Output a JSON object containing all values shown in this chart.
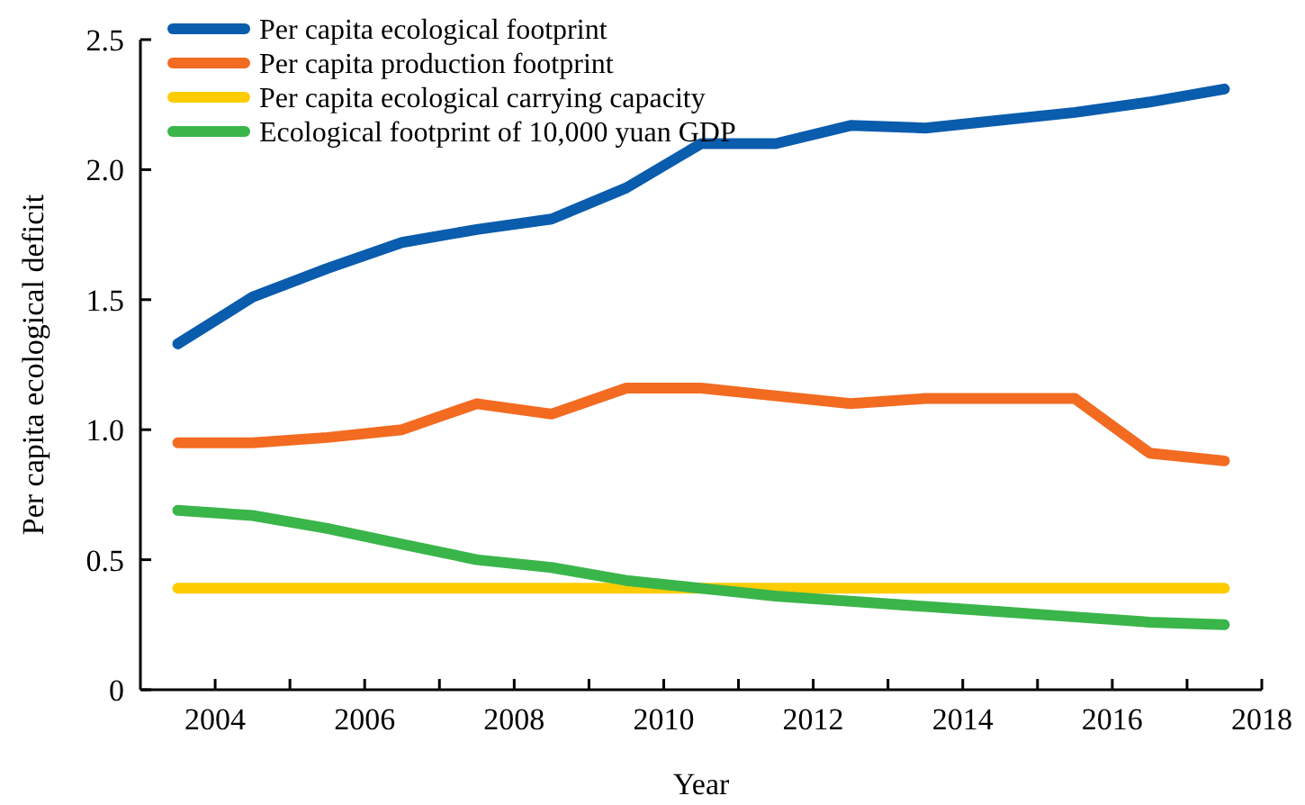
{
  "chart_data": {
    "type": "line",
    "xlabel": "Year",
    "ylabel": "Per capita ecological deficit",
    "x": [
      2003.5,
      2004.5,
      2005.5,
      2006.5,
      2007.5,
      2008.5,
      2009.5,
      2010.5,
      2011.5,
      2012.5,
      2013.5,
      2014.5,
      2015.5,
      2016.5,
      2017.5
    ],
    "xlim": [
      2003,
      2018
    ],
    "xticks": [
      2004,
      {
        "value": 2005,
        "label": null
      },
      2006,
      {
        "value": 2007,
        "label": null
      },
      2008,
      {
        "value": 2009,
        "label": null
      },
      2010,
      {
        "value": 2011,
        "label": null
      },
      2012,
      {
        "value": 2013,
        "label": null
      },
      2014,
      {
        "value": 2015,
        "label": null
      },
      2016,
      {
        "value": 2017,
        "label": null
      },
      2018
    ],
    "ylim": [
      0,
      2.5
    ],
    "yticks": [
      0,
      0.5,
      {
        "value": 1,
        "label": "1.0"
      },
      1.5,
      {
        "value": 2,
        "label": "2.0"
      },
      2.5
    ],
    "grid": false,
    "legend": "top left",
    "marker": "none",
    "line_style": "solid",
    "series": [
      {
        "name": "Per capita ecological footprint",
        "color": "#0a5cad",
        "values": [
          1.33,
          1.51,
          1.62,
          1.72,
          1.77,
          1.81,
          1.93,
          2.1,
          2.1,
          2.17,
          2.16,
          2.19,
          2.22,
          2.26,
          2.31
        ]
      },
      {
        "name": "Per capita production footprint",
        "color": "#f26b21",
        "values": [
          0.95,
          0.95,
          0.97,
          1.0,
          1.1,
          1.06,
          1.16,
          1.16,
          1.13,
          1.1,
          1.12,
          1.12,
          1.12,
          0.91,
          0.88
        ]
      },
      {
        "name": "Per capita ecological carrying capacity",
        "color": "#ffcc00",
        "values": [
          0.39,
          0.39,
          0.39,
          0.39,
          0.39,
          0.39,
          0.39,
          0.39,
          0.39,
          0.39,
          0.39,
          0.39,
          0.39,
          0.39,
          0.39
        ]
      },
      {
        "name": "Ecological footprint of 10,000 yuan GDP",
        "color": "#3ab54a",
        "values": [
          0.69,
          0.67,
          0.62,
          0.56,
          0.5,
          0.47,
          0.42,
          0.39,
          0.36,
          0.34,
          0.32,
          0.3,
          0.28,
          0.26,
          0.25
        ]
      }
    ]
  }
}
